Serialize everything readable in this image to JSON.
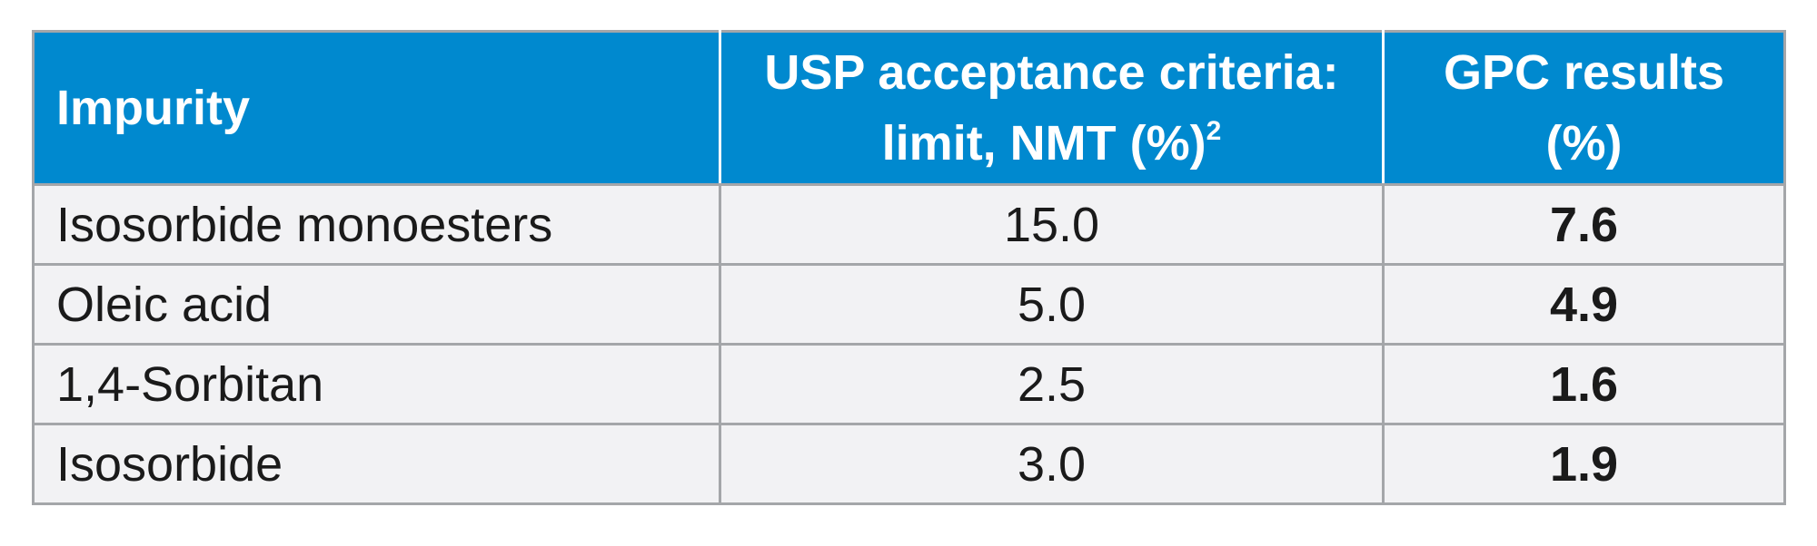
{
  "table": {
    "headers": {
      "impurity": "Impurity",
      "usp_line1": "USP acceptance criteria:",
      "usp_line2": "limit, NMT (%)",
      "usp_footnote": "2",
      "gpc_line1": "GPC results",
      "gpc_line2": "(%)"
    },
    "rows": [
      {
        "impurity": "Isosorbide monoesters",
        "limit": "15.0",
        "result": "7.6"
      },
      {
        "impurity": "Oleic acid",
        "limit": "5.0",
        "result": "4.9"
      },
      {
        "impurity": "1,4-Sorbitan",
        "limit": "2.5",
        "result": "1.6"
      },
      {
        "impurity": "Isosorbide",
        "limit": "3.0",
        "result": "1.9"
      }
    ],
    "colors": {
      "header_bg": "#0089cf",
      "row_bg": "#f2f2f4",
      "border": "#a4a6a9"
    }
  }
}
